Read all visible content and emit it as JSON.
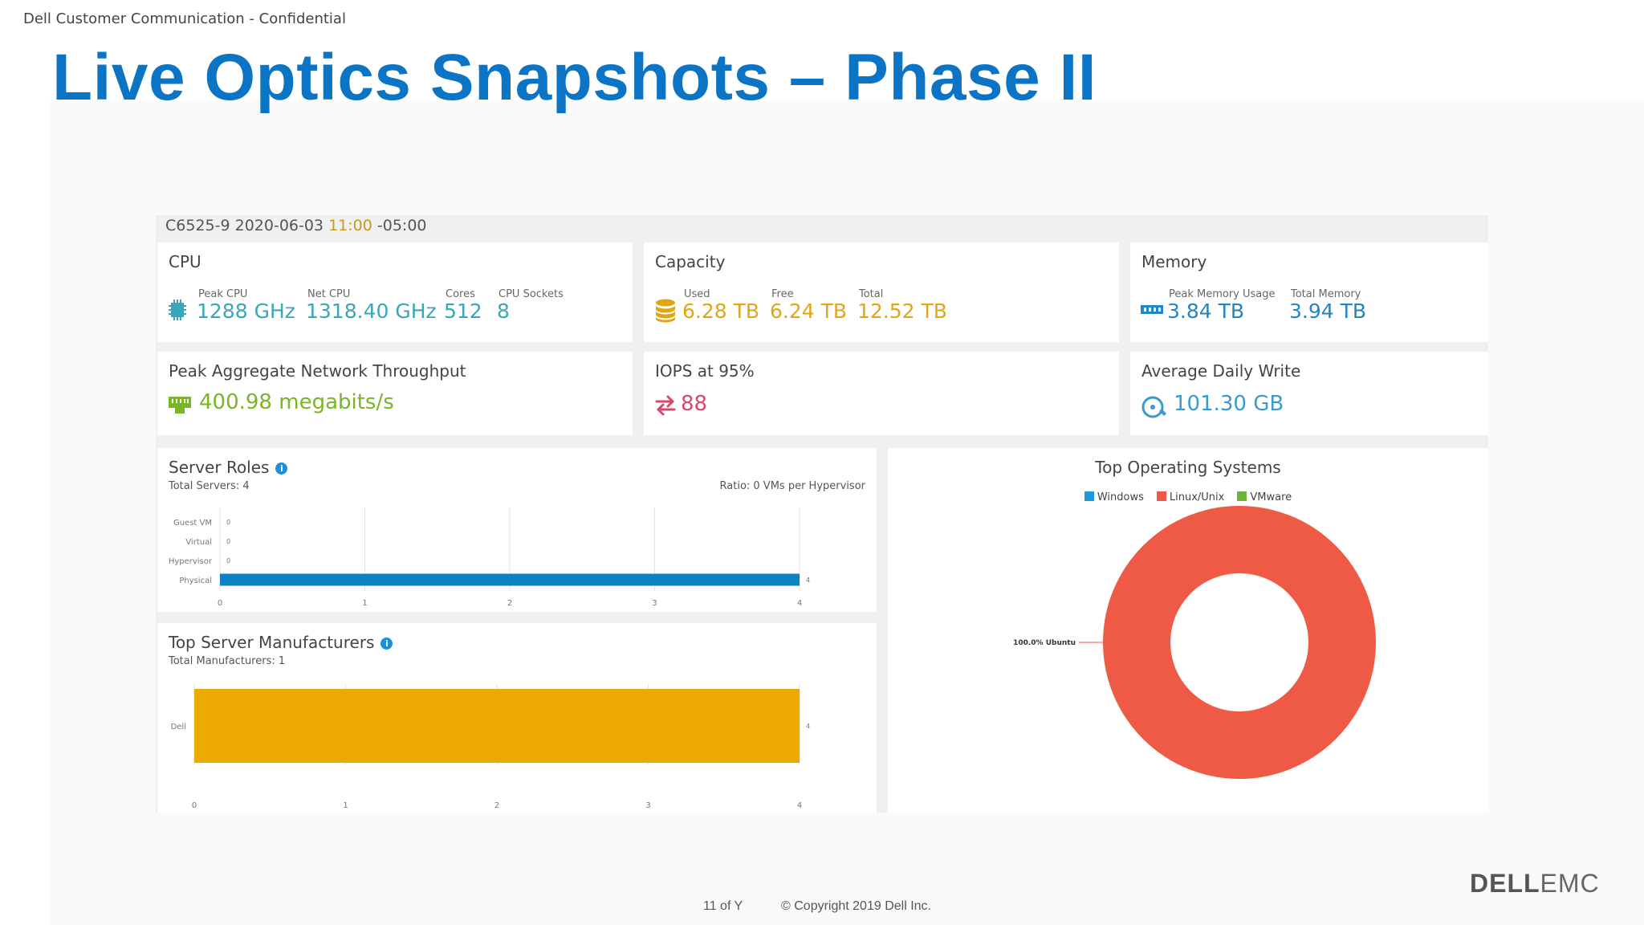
{
  "header": {
    "confidential": "Dell Customer Communication - Confidential",
    "title": "Live Optics Snapshots – Phase II"
  },
  "snapshot": {
    "name": "C6525-9 2020-06-03",
    "time": "11:00",
    "tz": "-05:00"
  },
  "cpu": {
    "title": "CPU",
    "peak_label": "Peak CPU",
    "peak_value": "1288 GHz",
    "net_label": "Net CPU",
    "net_value": "1318.40 GHz",
    "cores_label": "Cores",
    "cores_value": "512",
    "sockets_label": "CPU Sockets",
    "sockets_value": "8"
  },
  "capacity": {
    "title": "Capacity",
    "used_label": "Used",
    "used_value": "6.28 TB",
    "free_label": "Free",
    "free_value": "6.24 TB",
    "total_label": "Total",
    "total_value": "12.52 TB"
  },
  "memory": {
    "title": "Memory",
    "peak_label": "Peak Memory Usage",
    "peak_value": "3.84 TB",
    "total_label": "Total Memory",
    "total_value": "3.94 TB"
  },
  "network": {
    "title": "Peak Aggregate Network Throughput",
    "value": "400.98 megabits/s"
  },
  "iops": {
    "title": "IOPS at 95%",
    "value": "88"
  },
  "daily_write": {
    "title": "Average Daily Write",
    "value": "101.30 GB"
  },
  "server_roles": {
    "title": "Server Roles",
    "info": "i",
    "total": "Total Servers: 4",
    "ratio": "Ratio: 0 VMs per Hypervisor"
  },
  "manufacturers": {
    "title": "Top Server Manufacturers",
    "info": "i",
    "total": "Total Manufacturers: 1"
  },
  "top_os": {
    "title": "Top Operating Systems",
    "legend": [
      {
        "label": "Windows",
        "color": "#1e9bd7"
      },
      {
        "label": "Linux/Unix",
        "color": "#ee5a45"
      },
      {
        "label": "VMware",
        "color": "#6db33f"
      }
    ],
    "slice_label": "100.0% Ubuntu"
  },
  "chart_data": [
    {
      "type": "bar",
      "orientation": "horizontal",
      "categories": [
        "Guest VM",
        "Virtual",
        "Hypervisor",
        "Physical"
      ],
      "values": [
        0,
        0,
        0,
        4
      ],
      "data_labels": [
        "0",
        "0",
        "0",
        "4"
      ],
      "xlim": [
        0,
        4
      ],
      "xticks": [
        "0",
        "1",
        "2",
        "3",
        "4"
      ],
      "color": "#0a82c4",
      "grid": true
    },
    {
      "type": "bar",
      "orientation": "horizontal",
      "categories": [
        "Dell"
      ],
      "values": [
        4
      ],
      "data_labels": [
        "4"
      ],
      "xlim": [
        0,
        4
      ],
      "xticks": [
        "0",
        "1",
        "2",
        "3",
        "4"
      ],
      "color": "#ecaa00",
      "grid": true
    },
    {
      "type": "pie",
      "hole": true,
      "slices": [
        {
          "label": "Ubuntu",
          "value": 100.0,
          "color": "#ee5a45"
        }
      ]
    }
  ],
  "footer": {
    "page": "11 of Y",
    "copyright": "© Copyright 2019 Dell Inc.",
    "brand_dell": "DELL",
    "brand_emc": "EMC"
  }
}
